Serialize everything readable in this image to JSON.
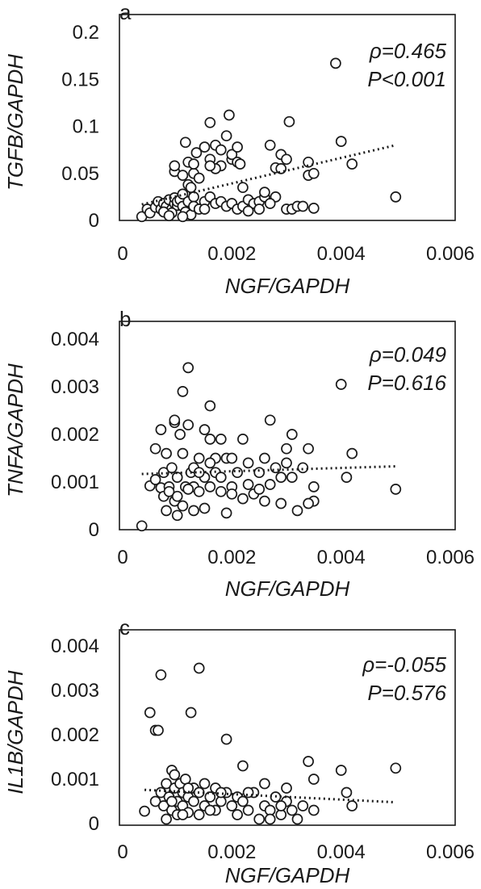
{
  "chart_data": [
    {
      "type": "scatter",
      "panel_label": "a",
      "xlabel": "NGF/GAPDH",
      "ylabel": "TGFB/GAPDH",
      "xlim": [
        0,
        0.006
      ],
      "ylim": [
        0,
        0.2
      ],
      "x_ticks": [
        "0",
        "0.002",
        "0.004",
        "0.006"
      ],
      "y_ticks": [
        "0",
        "0.05",
        "0.1",
        "0.15",
        "0.2"
      ],
      "annotations": [
        "ρ=0.465",
        "P<0.001"
      ],
      "grid": false,
      "trendline": {
        "style": "dotted",
        "x": [
          0.00035,
          0.005
        ],
        "y": [
          0.017,
          0.08
        ]
      },
      "points": [
        [
          0.00035,
          0.004
        ],
        [
          0.00045,
          0.012
        ],
        [
          0.0005,
          0.008
        ],
        [
          0.0006,
          0.014
        ],
        [
          0.00065,
          0.02
        ],
        [
          0.0007,
          0.012
        ],
        [
          0.00075,
          0.018
        ],
        [
          0.0008,
          0.015
        ],
        [
          0.00085,
          0.022
        ],
        [
          0.0009,
          0.012
        ],
        [
          0.00095,
          0.018
        ],
        [
          0.00095,
          0.024
        ],
        [
          0.001,
          0.016
        ],
        [
          0.001,
          0.02
        ],
        [
          0.0009,
          0.008
        ],
        [
          0.00105,
          0.022
        ],
        [
          0.0011,
          0.015
        ],
        [
          0.0011,
          0.028
        ],
        [
          0.00115,
          0.009
        ],
        [
          0.0012,
          0.02
        ],
        [
          0.0012,
          0.038
        ],
        [
          0.00125,
          0.006
        ],
        [
          0.0013,
          0.025
        ],
        [
          0.0013,
          0.015
        ],
        [
          0.0014,
          0.012
        ],
        [
          0.0011,
          0.004
        ],
        [
          0.00095,
          0.052
        ],
        [
          0.00095,
          0.058
        ],
        [
          0.0011,
          0.048
        ],
        [
          0.0012,
          0.062
        ],
        [
          0.00115,
          0.083
        ],
        [
          0.0013,
          0.05
        ],
        [
          0.00135,
          0.072
        ],
        [
          0.0015,
          0.078
        ],
        [
          0.0016,
          0.065
        ],
        [
          0.0016,
          0.104
        ],
        [
          0.0017,
          0.08
        ],
        [
          0.0018,
          0.075
        ],
        [
          0.0018,
          0.058
        ],
        [
          0.0017,
          0.055
        ],
        [
          0.0016,
          0.058
        ],
        [
          0.0019,
          0.09
        ],
        [
          0.00195,
          0.112
        ],
        [
          0.002,
          0.065
        ],
        [
          0.002,
          0.07
        ],
        [
          0.0021,
          0.062
        ],
        [
          0.0021,
          0.078
        ],
        [
          0.00215,
          0.06
        ],
        [
          0.0014,
          0.045
        ],
        [
          0.0015,
          0.02
        ],
        [
          0.0015,
          0.012
        ],
        [
          0.0016,
          0.025
        ],
        [
          0.0017,
          0.018
        ],
        [
          0.0018,
          0.02
        ],
        [
          0.0019,
          0.015
        ],
        [
          0.002,
          0.018
        ],
        [
          0.0021,
          0.012
        ],
        [
          0.0022,
          0.015
        ],
        [
          0.0023,
          0.022
        ],
        [
          0.0024,
          0.018
        ],
        [
          0.0025,
          0.02
        ],
        [
          0.0026,
          0.025
        ],
        [
          0.0026,
          0.03
        ],
        [
          0.0027,
          0.08
        ],
        [
          0.0028,
          0.056
        ],
        [
          0.0029,
          0.07
        ],
        [
          0.0029,
          0.055
        ],
        [
          0.003,
          0.065
        ],
        [
          0.00305,
          0.105
        ],
        [
          0.003,
          0.012
        ],
        [
          0.0031,
          0.012
        ],
        [
          0.0032,
          0.015
        ],
        [
          0.0033,
          0.015
        ],
        [
          0.0034,
          0.062
        ],
        [
          0.0034,
          0.048
        ],
        [
          0.0035,
          0.013
        ],
        [
          0.0035,
          0.05
        ],
        [
          0.0028,
          0.025
        ],
        [
          0.0025,
          0.012
        ],
        [
          0.0022,
          0.035
        ],
        [
          0.0027,
          0.018
        ],
        [
          0.0023,
          0.01
        ],
        [
          0.004,
          0.084
        ],
        [
          0.0042,
          0.06
        ],
        [
          0.0039,
          0.167
        ],
        [
          0.005,
          0.025
        ],
        [
          0.00125,
          0.035
        ],
        [
          0.0013,
          0.06
        ],
        [
          0.00075,
          0.009
        ],
        [
          0.00085,
          0.005
        ]
      ]
    },
    {
      "type": "scatter",
      "panel_label": "b",
      "xlabel": "NGF/GAPDH",
      "ylabel": "TNFA/GAPDH",
      "xlim": [
        0,
        0.006
      ],
      "ylim": [
        0,
        0.004
      ],
      "x_ticks": [
        "0",
        "0.002",
        "0.004",
        "0.006"
      ],
      "y_ticks": [
        "0",
        "0.001",
        "0.002",
        "0.003",
        "0.004"
      ],
      "annotations": [
        "ρ=0.049",
        "P=0.616"
      ],
      "grid": false,
      "trendline": {
        "style": "dotted",
        "x": [
          0.00035,
          0.005
        ],
        "y": [
          0.00117,
          0.00133
        ]
      },
      "points": [
        [
          0.00035,
          8e-05
        ],
        [
          0.0005,
          0.00092
        ],
        [
          0.0006,
          0.00105
        ],
        [
          0.0006,
          0.0017
        ],
        [
          0.0007,
          0.0021
        ],
        [
          0.0007,
          0.00088
        ],
        [
          0.00075,
          0.0012
        ],
        [
          0.0008,
          0.0004
        ],
        [
          0.0008,
          0.0016
        ],
        [
          0.00085,
          0.0009
        ],
        [
          0.0009,
          0.0013
        ],
        [
          0.00095,
          0.0006
        ],
        [
          0.00095,
          0.00225
        ],
        [
          0.00095,
          0.0023
        ],
        [
          0.001,
          0.0011
        ],
        [
          0.001,
          0.0007
        ],
        [
          0.00105,
          0.002
        ],
        [
          0.0011,
          0.0016
        ],
        [
          0.0011,
          0.0029
        ],
        [
          0.00115,
          0.0009
        ],
        [
          0.0012,
          0.0034
        ],
        [
          0.0012,
          0.0022
        ],
        [
          0.00125,
          0.0012
        ],
        [
          0.0013,
          0.0013
        ],
        [
          0.0013,
          0.0009
        ],
        [
          0.0013,
          0.0004
        ],
        [
          0.0014,
          0.0015
        ],
        [
          0.0014,
          0.0008
        ],
        [
          0.0015,
          0.0021
        ],
        [
          0.0015,
          0.0011
        ],
        [
          0.0016,
          0.0026
        ],
        [
          0.0016,
          0.0019
        ],
        [
          0.0016,
          0.0009
        ],
        [
          0.0017,
          0.0015
        ],
        [
          0.0017,
          0.0012
        ],
        [
          0.0018,
          0.0019
        ],
        [
          0.0018,
          0.0008
        ],
        [
          0.0019,
          0.00035
        ],
        [
          0.0019,
          0.0015
        ],
        [
          0.002,
          0.0009
        ],
        [
          0.002,
          0.00075
        ],
        [
          0.0021,
          0.0012
        ],
        [
          0.0022,
          0.00065
        ],
        [
          0.0022,
          0.0019
        ],
        [
          0.0023,
          0.0014
        ],
        [
          0.0024,
          0.00075
        ],
        [
          0.0025,
          0.0012
        ],
        [
          0.0026,
          0.0015
        ],
        [
          0.0026,
          0.0006
        ],
        [
          0.0027,
          0.0023
        ],
        [
          0.0028,
          0.0013
        ],
        [
          0.0029,
          0.0011
        ],
        [
          0.003,
          0.0017
        ],
        [
          0.003,
          0.0014
        ],
        [
          0.0031,
          0.002
        ],
        [
          0.0031,
          0.0011
        ],
        [
          0.0032,
          0.0004
        ],
        [
          0.0033,
          0.0013
        ],
        [
          0.0034,
          0.0017
        ],
        [
          0.0035,
          0.0009
        ],
        [
          0.0035,
          0.0006
        ],
        [
          0.004,
          0.00305
        ],
        [
          0.0041,
          0.0011
        ],
        [
          0.0042,
          0.0016
        ],
        [
          0.005,
          0.00085
        ],
        [
          0.00075,
          0.0007
        ],
        [
          0.00085,
          0.0008
        ],
        [
          0.001,
          0.0003
        ],
        [
          0.0011,
          0.0005
        ],
        [
          0.0012,
          0.00085
        ],
        [
          0.0014,
          0.0012
        ],
        [
          0.0015,
          0.00045
        ],
        [
          0.0016,
          0.0014
        ],
        [
          0.0018,
          0.0011
        ],
        [
          0.002,
          0.0015
        ],
        [
          0.0023,
          0.00095
        ],
        [
          0.0025,
          0.00085
        ],
        [
          0.0027,
          0.00095
        ],
        [
          0.0029,
          0.00055
        ],
        [
          0.0034,
          0.00055
        ]
      ]
    },
    {
      "type": "scatter",
      "panel_label": "c",
      "xlabel": "NGF/GAPDH",
      "ylabel": "IL1B/GAPDH",
      "xlim": [
        0,
        0.006
      ],
      "ylim": [
        0,
        0.004
      ],
      "x_ticks": [
        "0",
        "0.002",
        "0.004",
        "0.006"
      ],
      "y_ticks": [
        "0",
        "0.001",
        "0.002",
        "0.003",
        "0.004"
      ],
      "annotations": [
        "ρ=-0.055",
        "P=0.576"
      ],
      "grid": false,
      "trendline": {
        "style": "dotted",
        "x": [
          0.0004,
          0.005
        ],
        "y": [
          0.00076,
          0.00048
        ]
      },
      "points": [
        [
          0.0004,
          0.00028
        ],
        [
          0.0005,
          0.0025
        ],
        [
          0.0006,
          0.0021
        ],
        [
          0.00065,
          0.0021
        ],
        [
          0.0007,
          0.00335
        ],
        [
          0.0006,
          0.0005
        ],
        [
          0.0007,
          0.0007
        ],
        [
          0.00075,
          0.0004
        ],
        [
          0.0008,
          0.0009
        ],
        [
          0.00085,
          0.0006
        ],
        [
          0.0009,
          0.0003
        ],
        [
          0.0009,
          0.0012
        ],
        [
          0.00095,
          0.0008
        ],
        [
          0.001,
          0.0005
        ],
        [
          0.001,
          0.0002
        ],
        [
          0.00105,
          0.0009
        ],
        [
          0.0011,
          0.0007
        ],
        [
          0.0011,
          0.0004
        ],
        [
          0.00115,
          0.001
        ],
        [
          0.0012,
          0.0006
        ],
        [
          0.0012,
          0.00025
        ],
        [
          0.00125,
          0.0025
        ],
        [
          0.0013,
          0.0008
        ],
        [
          0.0013,
          0.0005
        ],
        [
          0.0014,
          0.0035
        ],
        [
          0.0014,
          0.0007
        ],
        [
          0.0015,
          0.0004
        ],
        [
          0.0015,
          0.0009
        ],
        [
          0.0016,
          0.0006
        ],
        [
          0.0017,
          0.0008
        ],
        [
          0.0017,
          0.0003
        ],
        [
          0.0018,
          0.0005
        ],
        [
          0.0019,
          0.0019
        ],
        [
          0.0019,
          0.0007
        ],
        [
          0.002,
          0.0004
        ],
        [
          0.0021,
          0.0006
        ],
        [
          0.0022,
          0.0013
        ],
        [
          0.0022,
          0.0005
        ],
        [
          0.0023,
          0.0003
        ],
        [
          0.0024,
          0.0007
        ],
        [
          0.0025,
          0.0001
        ],
        [
          0.0026,
          0.0009
        ],
        [
          0.0026,
          0.0004
        ],
        [
          0.0027,
          0.0003
        ],
        [
          0.0028,
          0.0006
        ],
        [
          0.0029,
          0.0002
        ],
        [
          0.003,
          0.0005
        ],
        [
          0.003,
          0.0008
        ],
        [
          0.0031,
          0.0003
        ],
        [
          0.0032,
          0.0001
        ],
        [
          0.0033,
          0.0004
        ],
        [
          0.0034,
          0.0014
        ],
        [
          0.0035,
          0.001
        ],
        [
          0.0035,
          0.0003
        ],
        [
          0.004,
          0.0012
        ],
        [
          0.0041,
          0.0007
        ],
        [
          0.0042,
          0.0004
        ],
        [
          0.005,
          0.00125
        ],
        [
          0.00095,
          0.0011
        ],
        [
          0.0008,
          0.0001
        ],
        [
          0.0009,
          0.0005
        ],
        [
          0.0011,
          0.0002
        ],
        [
          0.0012,
          0.0008
        ],
        [
          0.0014,
          0.0002
        ],
        [
          0.0016,
          0.0003
        ],
        [
          0.0018,
          0.0007
        ],
        [
          0.0021,
          0.0002
        ],
        [
          0.0023,
          0.0007
        ],
        [
          0.0027,
          0.0001
        ],
        [
          0.0029,
          0.0004
        ]
      ]
    }
  ]
}
